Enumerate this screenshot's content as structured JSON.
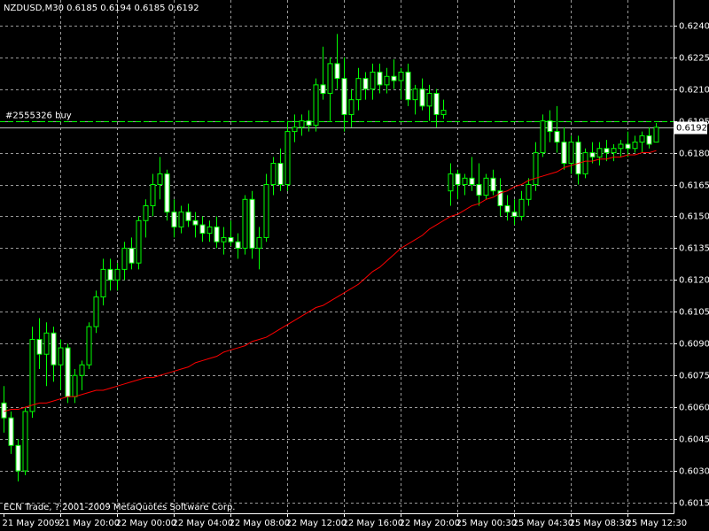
{
  "chart_data": {
    "type": "candlestick",
    "title": "NZDUSD,M30  0.6185 0.6194 0.6185 0.6192",
    "footer": "ECN Trade, ? 2001-2009 MetaQuotes Software Corp.",
    "categories": [
      "21 May 2009",
      null,
      null,
      null,
      null,
      null,
      null,
      null,
      "21 May 20:00",
      null,
      null,
      null,
      null,
      null,
      null,
      null,
      "22 May 00:00",
      null,
      null,
      null,
      null,
      null,
      null,
      null,
      "22 May 04:00",
      null,
      null,
      null,
      null,
      null,
      null,
      null,
      "22 May 08:00",
      null,
      null,
      null,
      null,
      null,
      null,
      null,
      "22 May 12:00",
      null,
      null,
      null,
      null,
      null,
      null,
      null,
      "22 May 16:00",
      null,
      null,
      null,
      null,
      null,
      null,
      null,
      "22 May 20:00",
      null,
      null,
      null,
      null,
      null,
      null,
      null,
      "25 May 00:30",
      null,
      null,
      null,
      null,
      null,
      null,
      null,
      "25 May 04:30",
      null,
      null,
      null,
      null,
      null,
      null,
      null,
      "25 May 08:30",
      null,
      null,
      null,
      null,
      null,
      null,
      null,
      "25 May 12:30",
      null,
      null,
      null,
      null
    ],
    "open": [
      0.6062,
      0.6055,
      0.6042,
      0.603,
      0.6058,
      0.6092,
      0.6085,
      0.6095,
      0.608,
      0.6088,
      0.6065,
      0.6075,
      0.608,
      0.6098,
      0.6112,
      0.6125,
      0.612,
      0.6125,
      0.6135,
      0.6128,
      0.6148,
      0.6155,
      0.6165,
      0.617,
      0.6152,
      0.6145,
      0.6152,
      0.6148,
      0.6146,
      0.6142,
      0.6145,
      0.6138,
      0.614,
      0.6138,
      0.6135,
      0.6158,
      0.6135,
      0.614,
      0.6165,
      0.6175,
      0.6165,
      0.619,
      0.6192,
      0.6195,
      0.6193,
      0.6212,
      0.6208,
      0.6222,
      0.6215,
      0.6198,
      0.6205,
      0.6215,
      0.621,
      0.6218,
      0.6212,
      0.6216,
      0.6214,
      0.6218,
      0.6205,
      0.621,
      0.6202,
      0.6208,
      0.6198,
      0.6162,
      0.617,
      0.6165,
      0.6168,
      0.6165,
      0.616,
      0.6168,
      0.6162,
      0.6155,
      0.6152,
      0.615,
      0.6158,
      0.6165,
      0.618,
      0.6195,
      0.619,
      0.6185,
      0.6175,
      0.6185,
      0.617,
      0.618,
      0.6178,
      0.6182,
      0.618,
      0.6182,
      0.6184,
      0.6182,
      0.6185,
      0.6188,
      0.6185
    ],
    "high": [
      0.607,
      0.6058,
      0.6045,
      0.606,
      0.6098,
      0.6102,
      0.61,
      0.6098,
      0.6092,
      0.609,
      0.6078,
      0.6082,
      0.61,
      0.6115,
      0.613,
      0.613,
      0.6128,
      0.6138,
      0.614,
      0.615,
      0.6158,
      0.617,
      0.6178,
      0.6172,
      0.6158,
      0.6155,
      0.6156,
      0.6152,
      0.615,
      0.6148,
      0.615,
      0.6145,
      0.6148,
      0.6142,
      0.616,
      0.6162,
      0.6145,
      0.617,
      0.6178,
      0.6182,
      0.6195,
      0.6198,
      0.6198,
      0.62,
      0.6215,
      0.623,
      0.6225,
      0.6236,
      0.6225,
      0.621,
      0.622,
      0.6218,
      0.6222,
      0.6222,
      0.622,
      0.6224,
      0.622,
      0.6222,
      0.6212,
      0.6215,
      0.6212,
      0.621,
      0.6205,
      0.6175,
      0.6172,
      0.617,
      0.6178,
      0.6175,
      0.617,
      0.6172,
      0.6168,
      0.616,
      0.6158,
      0.6162,
      0.6168,
      0.6185,
      0.6198,
      0.62,
      0.6202,
      0.6192,
      0.6188,
      0.6188,
      0.6182,
      0.6185,
      0.6185,
      0.6186,
      0.6184,
      0.6186,
      0.619,
      0.6188,
      0.619,
      0.6192,
      0.6194
    ],
    "low": [
      0.6048,
      0.6038,
      0.6025,
      0.6028,
      0.6055,
      0.6078,
      0.607,
      0.6072,
      0.6068,
      0.6062,
      0.6062,
      0.6068,
      0.6078,
      0.6095,
      0.6108,
      0.6115,
      0.6115,
      0.612,
      0.6125,
      0.6125,
      0.614,
      0.615,
      0.6158,
      0.6148,
      0.614,
      0.6142,
      0.6145,
      0.614,
      0.6138,
      0.6138,
      0.6135,
      0.6132,
      0.6136,
      0.613,
      0.6132,
      0.613,
      0.6125,
      0.6138,
      0.616,
      0.6162,
      0.6162,
      0.6185,
      0.6188,
      0.619,
      0.619,
      0.6205,
      0.6195,
      0.621,
      0.619,
      0.6192,
      0.62,
      0.6205,
      0.6205,
      0.6208,
      0.6208,
      0.621,
      0.6205,
      0.6202,
      0.6198,
      0.62,
      0.6195,
      0.6192,
      0.6196,
      0.6155,
      0.6158,
      0.616,
      0.6162,
      0.6155,
      0.6158,
      0.616,
      0.615,
      0.6148,
      0.6146,
      0.6148,
      0.6155,
      0.6162,
      0.6178,
      0.6185,
      0.618,
      0.6172,
      0.617,
      0.6165,
      0.6168,
      0.6175,
      0.6174,
      0.6176,
      0.6176,
      0.6178,
      0.6178,
      0.618,
      0.618,
      0.6182,
      0.6185
    ],
    "close": [
      0.6055,
      0.6042,
      0.603,
      0.6058,
      0.6092,
      0.6085,
      0.6095,
      0.608,
      0.6088,
      0.6065,
      0.6075,
      0.608,
      0.6098,
      0.6112,
      0.6125,
      0.612,
      0.6125,
      0.6135,
      0.6128,
      0.6148,
      0.6155,
      0.6165,
      0.617,
      0.6152,
      0.6145,
      0.6152,
      0.6148,
      0.6146,
      0.6142,
      0.6145,
      0.6138,
      0.614,
      0.6138,
      0.6135,
      0.6158,
      0.6135,
      0.614,
      0.6165,
      0.6175,
      0.6165,
      0.619,
      0.6192,
      0.6195,
      0.6193,
      0.6212,
      0.6208,
      0.6222,
      0.6215,
      0.6198,
      0.6205,
      0.6215,
      0.621,
      0.6218,
      0.6212,
      0.6216,
      0.6214,
      0.6218,
      0.6205,
      0.621,
      0.6202,
      0.6208,
      0.6198,
      0.62,
      0.617,
      0.6165,
      0.6168,
      0.6165,
      0.616,
      0.6168,
      0.6162,
      0.6155,
      0.6152,
      0.615,
      0.6158,
      0.6165,
      0.618,
      0.6195,
      0.619,
      0.6185,
      0.6175,
      0.6185,
      0.617,
      0.618,
      0.6178,
      0.6182,
      0.618,
      0.6182,
      0.6184,
      0.6182,
      0.6185,
      0.6188,
      0.6184,
      0.6192
    ],
    "moving_average": {
      "color": "#ff0000",
      "values": [
        0.6058,
        0.6059,
        0.6059,
        0.606,
        0.6061,
        0.6062,
        0.6062,
        0.6063,
        0.6064,
        0.6065,
        0.6065,
        0.6066,
        0.6067,
        0.6068,
        0.6068,
        0.6069,
        0.607,
        0.6071,
        0.6072,
        0.6073,
        0.6074,
        0.6074,
        0.6075,
        0.6076,
        0.6077,
        0.6078,
        0.6079,
        0.6081,
        0.6082,
        0.6083,
        0.6084,
        0.6086,
        0.6087,
        0.6088,
        0.6089,
        0.6091,
        0.6092,
        0.6093,
        0.6095,
        0.6097,
        0.6099,
        0.6101,
        0.6103,
        0.6105,
        0.6107,
        0.6108,
        0.611,
        0.6112,
        0.6114,
        0.6116,
        0.6118,
        0.6121,
        0.6124,
        0.6126,
        0.6129,
        0.6132,
        0.6135,
        0.6137,
        0.6139,
        0.6141,
        0.6144,
        0.6146,
        0.6148,
        0.615,
        0.6151,
        0.6153,
        0.6155,
        0.6156,
        0.6158,
        0.6159,
        0.6161,
        0.6162,
        0.6164,
        0.6165,
        0.6167,
        0.6168,
        0.6169,
        0.617,
        0.6171,
        0.6173,
        0.6174,
        0.6175,
        0.6176,
        0.6176,
        0.6177,
        0.6177,
        0.6178,
        0.6178,
        0.6179,
        0.6179,
        0.618,
        0.618,
        0.6181
      ]
    },
    "up_color": "#000000",
    "down_color": "#ffffff",
    "wick_color": "#00ff00",
    "order": {
      "label": "#2555326 buy",
      "value": 0.6195,
      "color": "#00ff00"
    },
    "bid": 0.6192,
    "ylim": [
      0.601,
      0.6252
    ],
    "yticks": [
      {
        "value": 0.624,
        "label": "0.6240"
      },
      0.6225,
      {
        "value": 0.621,
        "label": "0.6210"
      },
      0.6195,
      {
        "value": 0.618,
        "label": "0.6180"
      },
      0.6165,
      {
        "value": 0.615,
        "label": "0.6150"
      },
      0.6135,
      {
        "value": 0.612,
        "label": "0.6120"
      },
      0.6105,
      {
        "value": 0.609,
        "label": "0.6090"
      },
      0.6075,
      {
        "value": 0.606,
        "label": "0.6060"
      },
      0.6045,
      {
        "value": 0.603,
        "label": "0.6030"
      },
      0.6015
    ],
    "grid": true
  }
}
